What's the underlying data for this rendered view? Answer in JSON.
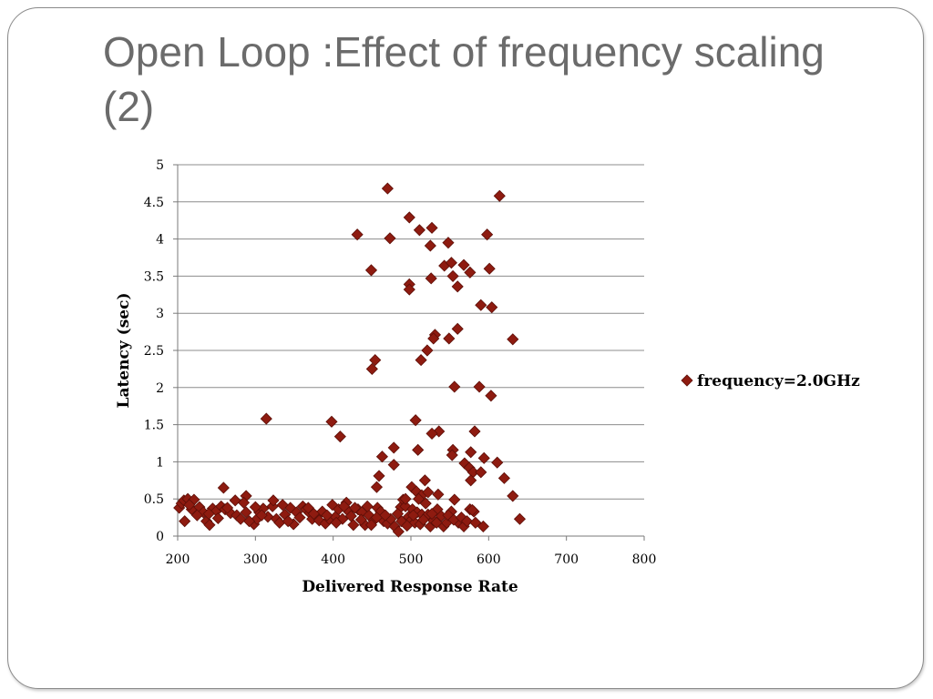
{
  "slide": {
    "title": "Open Loop :Effect of frequency scaling (2)"
  },
  "chart_data": {
    "type": "scatter",
    "xlabel": "Delivered Response Rate",
    "ylabel": "Latency (sec)",
    "xlim": [
      200,
      800
    ],
    "ylim": [
      0,
      5
    ],
    "x_ticks": [
      200,
      300,
      400,
      500,
      600,
      700,
      800
    ],
    "y_ticks": [
      0,
      0.5,
      1,
      1.5,
      2,
      2.5,
      3,
      3.5,
      4,
      4.5,
      5
    ],
    "grid": "horizontal",
    "legend": "right",
    "series": [
      {
        "name": "frequency=2.0GHz",
        "color": "#8e1b10",
        "marker": "diamond",
        "points": [
          [
            470,
            4.68
          ],
          [
            614,
            4.58
          ],
          [
            498,
            4.29
          ],
          [
            527,
            4.15
          ],
          [
            511,
            4.12
          ],
          [
            431,
            4.06
          ],
          [
            473,
            4.01
          ],
          [
            598,
            4.06
          ],
          [
            548,
            3.95
          ],
          [
            525,
            3.91
          ],
          [
            543,
            3.64
          ],
          [
            552,
            3.68
          ],
          [
            568,
            3.65
          ],
          [
            576,
            3.55
          ],
          [
            554,
            3.5
          ],
          [
            560,
            3.36
          ],
          [
            449,
            3.58
          ],
          [
            526,
            3.47
          ],
          [
            601,
            3.6
          ],
          [
            498,
            3.39
          ],
          [
            498,
            3.32
          ],
          [
            590,
            3.11
          ],
          [
            604,
            3.08
          ],
          [
            560,
            2.79
          ],
          [
            531,
            2.71
          ],
          [
            529,
            2.66
          ],
          [
            549,
            2.66
          ],
          [
            631,
            2.65
          ],
          [
            521,
            2.5
          ],
          [
            513,
            2.37
          ],
          [
            454,
            2.37
          ],
          [
            450,
            2.25
          ],
          [
            556,
            2.01
          ],
          [
            588,
            2.01
          ],
          [
            603,
            1.89
          ],
          [
            314,
            1.58
          ],
          [
            398,
            1.54
          ],
          [
            506,
            1.56
          ],
          [
            409,
            1.34
          ],
          [
            536,
            1.41
          ],
          [
            527,
            1.38
          ],
          [
            582,
            1.41
          ],
          [
            478,
            1.19
          ],
          [
            509,
            1.16
          ],
          [
            554,
            1.16
          ],
          [
            463,
            1.07
          ],
          [
            553,
            1.09
          ],
          [
            577,
            1.13
          ],
          [
            594,
            1.05
          ],
          [
            478,
            0.96
          ],
          [
            569,
            0.98
          ],
          [
            575,
            0.92
          ],
          [
            611,
            0.99
          ],
          [
            580,
            0.86
          ],
          [
            590,
            0.86
          ],
          [
            620,
            0.78
          ],
          [
            518,
            0.75
          ],
          [
            577,
            0.75
          ],
          [
            459,
            0.81
          ],
          [
            456,
            0.66
          ],
          [
            259,
            0.65
          ],
          [
            288,
            0.54
          ],
          [
            631,
            0.54
          ],
          [
            640,
            0.23
          ],
          [
            202,
            0.38
          ],
          [
            205,
            0.44
          ],
          [
            208,
            0.48
          ],
          [
            213,
            0.5
          ],
          [
            221,
            0.49
          ],
          [
            209,
            0.2
          ],
          [
            218,
            0.36
          ],
          [
            228,
            0.39
          ],
          [
            233,
            0.32
          ],
          [
            237,
            0.2
          ],
          [
            241,
            0.15
          ],
          [
            245,
            0.37
          ],
          [
            250,
            0.34
          ],
          [
            256,
            0.4
          ],
          [
            261,
            0.36
          ],
          [
            268,
            0.31
          ],
          [
            274,
            0.48
          ],
          [
            276,
            0.28
          ],
          [
            281,
            0.23
          ],
          [
            288,
            0.32
          ],
          [
            298,
            0.16
          ],
          [
            302,
            0.23
          ],
          [
            305,
            0.32
          ],
          [
            310,
            0.37
          ],
          [
            316,
            0.26
          ],
          [
            322,
            0.4
          ],
          [
            327,
            0.23
          ],
          [
            331,
            0.18
          ],
          [
            338,
            0.29
          ],
          [
            345,
            0.38
          ],
          [
            349,
            0.16
          ],
          [
            353,
            0.32
          ],
          [
            361,
            0.4
          ],
          [
            365,
            0.36
          ],
          [
            370,
            0.31
          ],
          [
            373,
            0.23
          ],
          [
            378,
            0.27
          ],
          [
            382,
            0.21
          ],
          [
            386,
            0.33
          ],
          [
            390,
            0.17
          ],
          [
            395,
            0.23
          ],
          [
            399,
            0.42
          ],
          [
            403,
            0.26
          ],
          [
            407,
            0.36
          ],
          [
            412,
            0.23
          ],
          [
            417,
            0.45
          ],
          [
            420,
            0.33
          ],
          [
            426,
            0.15
          ],
          [
            432,
            0.36
          ],
          [
            437,
            0.32
          ],
          [
            441,
            0.15
          ],
          [
            446,
            0.28
          ],
          [
            452,
            0.21
          ],
          [
            457,
            0.38
          ],
          [
            461,
            0.33
          ],
          [
            465,
            0.2
          ],
          [
            470,
            0.17
          ],
          [
            474,
            0.23
          ],
          [
            479,
            0.13
          ],
          [
            484,
            0.06
          ],
          [
            487,
            0.39
          ],
          [
            490,
            0.49
          ],
          [
            493,
            0.4
          ],
          [
            497,
            0.26
          ],
          [
            500,
            0.21
          ],
          [
            502,
            0.36
          ],
          [
            505,
            0.18
          ],
          [
            508,
            0.32
          ],
          [
            512,
            0.16
          ],
          [
            514,
            0.29
          ],
          [
            519,
            0.44
          ],
          [
            522,
            0.29
          ],
          [
            525,
            0.13
          ],
          [
            529,
            0.21
          ],
          [
            534,
            0.36
          ],
          [
            539,
            0.27
          ],
          [
            542,
            0.13
          ],
          [
            546,
            0.18
          ],
          [
            552,
            0.33
          ],
          [
            556,
            0.49
          ],
          [
            561,
            0.18
          ],
          [
            568,
            0.13
          ],
          [
            576,
            0.36
          ],
          [
            581,
            0.33
          ],
          [
            593,
            0.13
          ],
          [
            501,
            0.66
          ],
          [
            507,
            0.6
          ],
          [
            514,
            0.55
          ],
          [
            522,
            0.59
          ],
          [
            535,
            0.56
          ],
          [
            493,
            0.5
          ],
          [
            510,
            0.5
          ],
          [
            300,
            0.39
          ],
          [
            285,
            0.45
          ],
          [
            264,
            0.38
          ],
          [
            323,
            0.48
          ],
          [
            215,
            0.42
          ],
          [
            225,
            0.28
          ],
          [
            240,
            0.3
          ],
          [
            252,
            0.24
          ],
          [
            292,
            0.2
          ],
          [
            308,
            0.28
          ],
          [
            335,
            0.42
          ],
          [
            342,
            0.2
          ],
          [
            357,
            0.25
          ],
          [
            368,
            0.38
          ],
          [
            375,
            0.3
          ],
          [
            392,
            0.28
          ],
          [
            404,
            0.18
          ],
          [
            414,
            0.4
          ],
          [
            423,
            0.27
          ],
          [
            428,
            0.38
          ],
          [
            436,
            0.22
          ],
          [
            444,
            0.4
          ],
          [
            449,
            0.15
          ],
          [
            456,
            0.25
          ],
          [
            467,
            0.28
          ],
          [
            483,
            0.3
          ],
          [
            488,
            0.2
          ],
          [
            495,
            0.14
          ],
          [
            503,
            0.28
          ],
          [
            516,
            0.22
          ],
          [
            527,
            0.3
          ],
          [
            533,
            0.18
          ],
          [
            548,
            0.28
          ],
          [
            555,
            0.22
          ],
          [
            565,
            0.25
          ],
          [
            572,
            0.2
          ],
          [
            583,
            0.18
          ],
          [
            579,
            0.35
          ]
        ]
      }
    ]
  }
}
